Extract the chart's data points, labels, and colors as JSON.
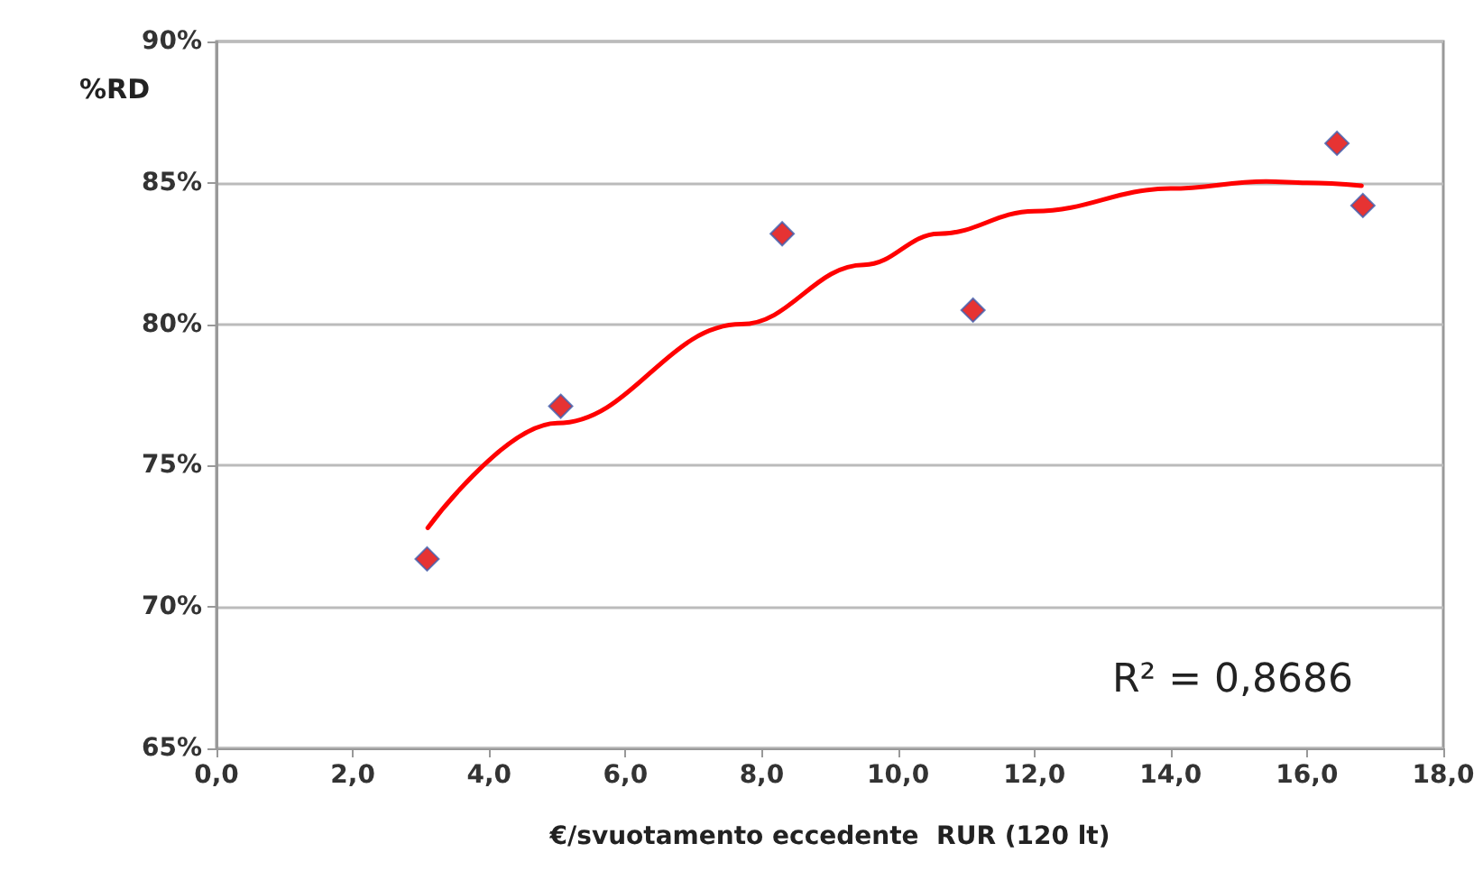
{
  "chart_data": {
    "type": "scatter",
    "xlabel": "€/svuotamento eccedente  RUR (120 lt)",
    "ylabel": "%RD",
    "series": [
      {
        "color": "#e00000",
        "marker": "diamond",
        "x": [
          3.09,
          5.05,
          8.3,
          11.1,
          16.44,
          16.82
        ],
        "values": [
          71.7,
          77.1,
          83.2,
          80.5,
          86.4,
          84.2
        ]
      },
      {
        "type": "line",
        "color": "#ff0000",
        "marker": "none",
        "line_style": "solid",
        "x": [
          3.1,
          5.0,
          7.7,
          9.5,
          10.6,
          12.0,
          14.0,
          15.4,
          16.0,
          16.8
        ],
        "values": [
          72.8,
          76.5,
          80.0,
          82.1,
          83.2,
          84.0,
          84.8,
          85.05,
          85.0,
          84.9
        ]
      }
    ],
    "xlim": [
      0,
      18
    ],
    "xticks": [
      {
        "value": 0,
        "label": "0,0"
      },
      {
        "value": 2,
        "label": "2,0"
      },
      {
        "value": 4,
        "label": "4,0"
      },
      {
        "value": 6,
        "label": "6,0"
      },
      {
        "value": 8,
        "label": "8,0"
      },
      {
        "value": 10,
        "label": "10,0"
      },
      {
        "value": 12,
        "label": "12,0"
      },
      {
        "value": 14,
        "label": "14,0"
      },
      {
        "value": 16,
        "label": "16,0"
      },
      {
        "value": 18,
        "label": "18,0"
      }
    ],
    "ylim": [
      65,
      90
    ],
    "yticks": [
      {
        "value": 65,
        "label": "65%"
      },
      {
        "value": 70,
        "label": "70%"
      },
      {
        "value": 75,
        "label": "75%"
      },
      {
        "value": 80,
        "label": "80%"
      },
      {
        "value": 85,
        "label": "85%"
      },
      {
        "value": 90,
        "label": "90%"
      }
    ],
    "annotations": [
      "R² = 0,8686"
    ],
    "grid": "y"
  }
}
